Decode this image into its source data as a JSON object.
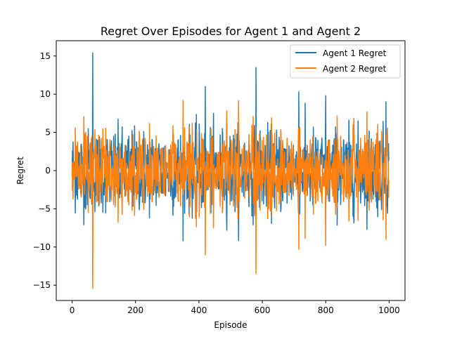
{
  "chart_data": {
    "type": "line",
    "title": "Regret Over Episodes for Agent 1 and Agent 2",
    "xlabel": "Episode",
    "ylabel": "Regret",
    "xlim": [
      -50,
      1050
    ],
    "ylim": [
      -17,
      17
    ],
    "xticks": [
      0,
      200,
      400,
      600,
      800,
      1000
    ],
    "yticks": [
      -15,
      -10,
      -5,
      0,
      5,
      10,
      15
    ],
    "xtick_labels": [
      "0",
      "200",
      "400",
      "600",
      "800",
      "1000"
    ],
    "ytick_labels": [
      "−15",
      "−10",
      "−5",
      "0",
      "5",
      "10",
      "15"
    ],
    "legend_position": "upper right",
    "grid": false,
    "n_episodes": 1000,
    "series": [
      {
        "name": "Agent 1 Regret",
        "color": "#1f77b4",
        "description": "noisy regret values per episode",
        "approx_range": [
          -5,
          5
        ],
        "spikes": [
          [
            65,
            15.4
          ],
          [
            420,
            11.0
          ],
          [
            580,
            13.5
          ],
          [
            715,
            10.3
          ],
          [
            800,
            9.8
          ],
          [
            990,
            9.0
          ]
        ]
      },
      {
        "name": "Agent 2 Regret",
        "color": "#ff7f0e",
        "description": "mirror of Agent 1 regret (negated)",
        "mirror_of": "Agent 1 Regret"
      }
    ]
  }
}
